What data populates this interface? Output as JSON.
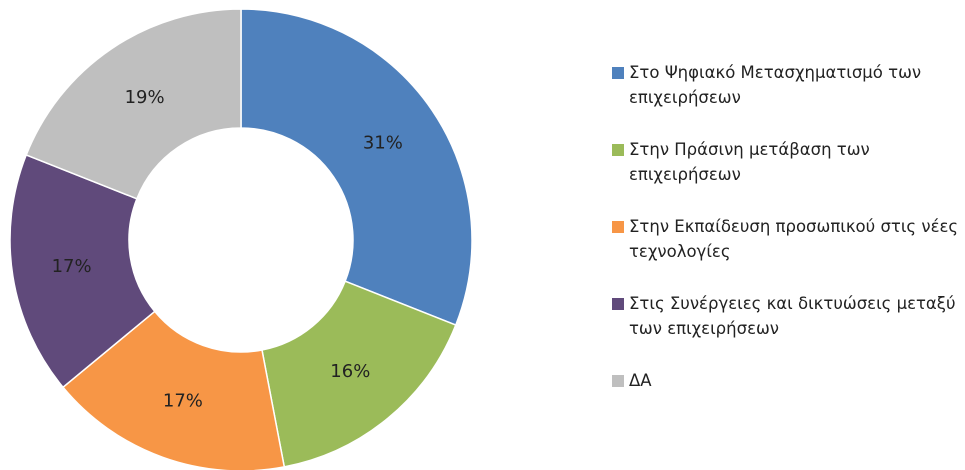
{
  "chart_data": {
    "type": "donut",
    "categories": [
      "Στο Ψηφιακό Μετασχηματισμό των επιχειρήσεων",
      "Στην Πράσινη μετάβαση των επιχειρήσεων",
      "Στην Εκπαίδευση προσωπικού στις νέες τεχνολογίες",
      "Στις Συνέργειες και δικτυώσεις μεταξύ των επιχειρήσεων",
      "ΔΑ"
    ],
    "values": [
      31,
      16,
      17,
      17,
      19
    ],
    "value_labels": [
      "31%",
      "16%",
      "17%",
      "17%",
      "19%"
    ],
    "colors": [
      "#4f81bd",
      "#9bbb59",
      "#f79646",
      "#604a7b",
      "#bfbfbf"
    ],
    "legend": "right"
  }
}
